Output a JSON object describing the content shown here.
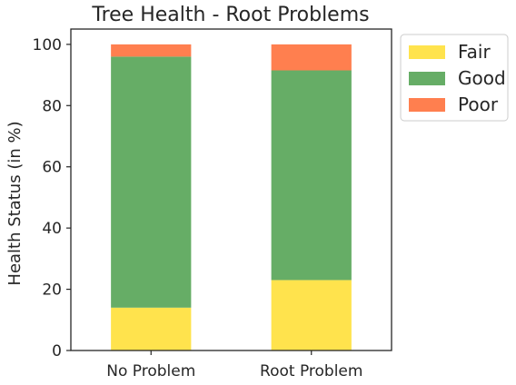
{
  "chart_data": {
    "type": "bar",
    "stacked": true,
    "title": "Tree Health - Root Problems",
    "xlabel": "",
    "ylabel": "Health Status (in %)",
    "ylim": [
      0,
      105
    ],
    "yticks": [
      0,
      20,
      40,
      60,
      80,
      100
    ],
    "categories": [
      "No Problem",
      "Root Problem"
    ],
    "series": [
      {
        "name": "Fair",
        "color": "#ffe34d",
        "values": [
          14,
          23
        ]
      },
      {
        "name": "Good",
        "color": "#66ad66",
        "values": [
          82,
          68.5
        ]
      },
      {
        "name": "Poor",
        "color": "#ff7f4f",
        "values": [
          4,
          8.5
        ]
      }
    ],
    "grid": false,
    "legend_position": "outside-top-right"
  }
}
